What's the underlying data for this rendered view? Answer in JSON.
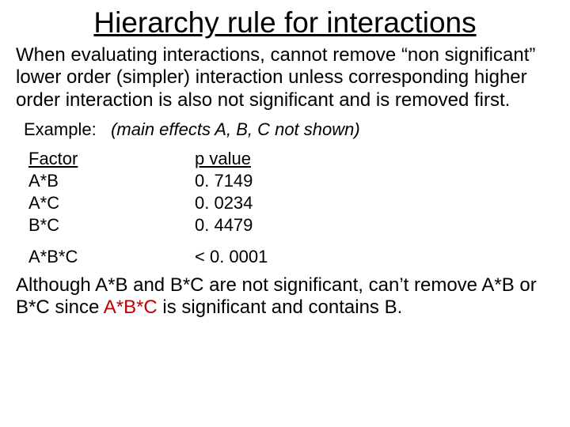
{
  "colors": {
    "background": "#ffffff",
    "text": "#000000",
    "highlight": "#c00000"
  },
  "title": "Hierarchy rule for interactions",
  "intro": "When evaluating interactions, cannot remove “non significant” lower order (simpler) interaction unless corresponding higher order interaction is also not significant and is removed first.",
  "example_label": "Example:",
  "example_note": "(main effects A, B, C not shown)",
  "table": {
    "header_factor": "Factor",
    "header_pvalue": "p value",
    "rows": [
      {
        "factor": "A*B",
        "pvalue": "0. 7149"
      },
      {
        "factor": "A*C",
        "pvalue": "0. 0234"
      },
      {
        "factor": "B*C",
        "pvalue": "0. 4479"
      }
    ],
    "special_row": {
      "factor": "A*B*C",
      "pvalue": "< 0. 0001"
    }
  },
  "conclusion": {
    "part1": "Although A*B and B*C are not significant, can’t remove A*B or B*C since ",
    "highlight": "A*B*C",
    "part2": " is significant and contains B."
  }
}
